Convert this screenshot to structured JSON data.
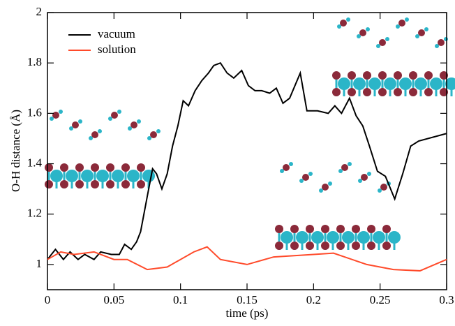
{
  "chart_data": {
    "type": "line",
    "xlabel": "time (ps)",
    "ylabel": "O-H distance (Å)",
    "xlim": [
      0,
      0.3
    ],
    "xticks": [
      0,
      0.05,
      0.1,
      0.15,
      0.2,
      0.25,
      0.3
    ],
    "ylim": [
      0.9,
      2
    ],
    "yticks": [
      1,
      1.2,
      1.4,
      1.6,
      1.8,
      2
    ],
    "legend": "upper left",
    "series": [
      {
        "name": "vacuum",
        "color": "#000000",
        "x": [
          0,
          0.006,
          0.012,
          0.017,
          0.023,
          0.028,
          0.035,
          0.04,
          0.048,
          0.054,
          0.058,
          0.063,
          0.067,
          0.07,
          0.075,
          0.079,
          0.082,
          0.086,
          0.09,
          0.094,
          0.098,
          0.102,
          0.106,
          0.111,
          0.116,
          0.121,
          0.125,
          0.13,
          0.135,
          0.14,
          0.146,
          0.151,
          0.156,
          0.161,
          0.167,
          0.172,
          0.177,
          0.182,
          0.19,
          0.195,
          0.203,
          0.211,
          0.216,
          0.221,
          0.227,
          0.232,
          0.237,
          0.242,
          0.248,
          0.254,
          0.261,
          0.267,
          0.273,
          0.279,
          0.3
        ],
        "values": [
          1.02,
          1.06,
          1.02,
          1.05,
          1.02,
          1.04,
          1.02,
          1.05,
          1.04,
          1.04,
          1.08,
          1.06,
          1.09,
          1.13,
          1.27,
          1.38,
          1.36,
          1.3,
          1.36,
          1.47,
          1.55,
          1.65,
          1.63,
          1.69,
          1.73,
          1.76,
          1.79,
          1.8,
          1.76,
          1.74,
          1.77,
          1.71,
          1.69,
          1.69,
          1.68,
          1.7,
          1.64,
          1.66,
          1.76,
          1.61,
          1.61,
          1.6,
          1.63,
          1.6,
          1.66,
          1.59,
          1.55,
          1.47,
          1.37,
          1.35,
          1.26,
          1.36,
          1.47,
          1.49,
          1.52
        ]
      },
      {
        "name": "solution",
        "color": "#ff4a2a",
        "x": [
          0,
          0.01,
          0.02,
          0.035,
          0.05,
          0.06,
          0.075,
          0.09,
          0.11,
          0.12,
          0.13,
          0.15,
          0.17,
          0.2,
          0.215,
          0.24,
          0.26,
          0.28,
          0.3
        ],
        "values": [
          1.02,
          1.05,
          1.04,
          1.05,
          1.02,
          1.02,
          0.98,
          0.99,
          1.05,
          1.07,
          1.02,
          1.0,
          1.03,
          1.04,
          1.045,
          1.0,
          0.98,
          0.975,
          1.02
        ]
      }
    ]
  }
}
